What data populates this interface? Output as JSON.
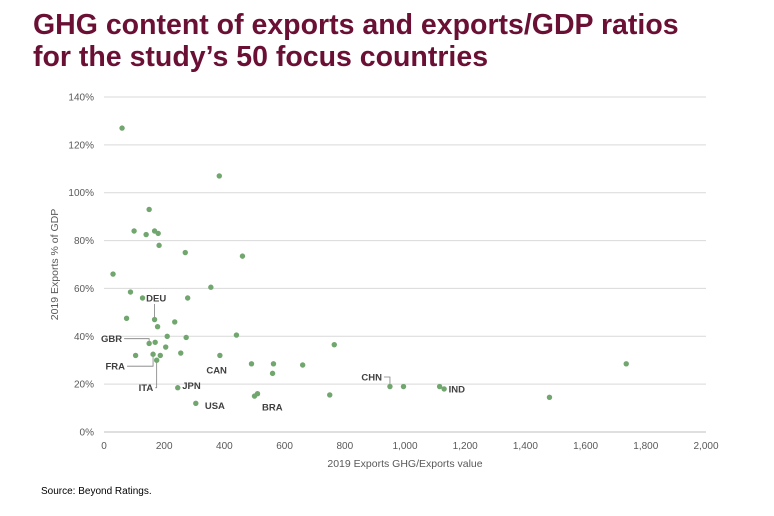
{
  "title": {
    "line1": "GHG content of exports and exports/GDP ratios",
    "line2": "for the study’s 50 focus countries"
  },
  "source": "Source: Beyond Ratings.",
  "colors": {
    "title": "#6b1035",
    "point": "#71a66e",
    "grid": "#d9d9d9",
    "leader": "#7f7f7f"
  },
  "chart_data": {
    "type": "scatter",
    "xlabel": "2019 Exports GHG/Exports value",
    "ylabel": "2019 Exports % of GDP",
    "xlim": [
      0,
      2000
    ],
    "ylim": [
      0,
      140
    ],
    "x_ticks": [
      {
        "v": 0,
        "t": "0"
      },
      {
        "v": 200,
        "t": "200"
      },
      {
        "v": 400,
        "t": "400"
      },
      {
        "v": 600,
        "t": "600"
      },
      {
        "v": 800,
        "t": "800"
      },
      {
        "v": 1000,
        "t": "1,000"
      },
      {
        "v": 1200,
        "t": "1,200"
      },
      {
        "v": 1400,
        "t": "1,400"
      },
      {
        "v": 1600,
        "t": "1,600"
      },
      {
        "v": 1800,
        "t": "1,800"
      },
      {
        "v": 2000,
        "t": "2,000"
      }
    ],
    "y_ticks": [
      {
        "v": 0,
        "t": "0%"
      },
      {
        "v": 20,
        "t": "20%"
      },
      {
        "v": 40,
        "t": "40%"
      },
      {
        "v": 60,
        "t": "60%"
      },
      {
        "v": 80,
        "t": "80%"
      },
      {
        "v": 100,
        "t": "100%"
      },
      {
        "v": 120,
        "t": "120%"
      },
      {
        "v": 140,
        "t": "140%"
      }
    ],
    "grid": true,
    "points": [
      {
        "x": 60,
        "y": 127
      },
      {
        "x": 30,
        "y": 66
      },
      {
        "x": 75,
        "y": 47.5
      },
      {
        "x": 88,
        "y": 58.5
      },
      {
        "x": 100,
        "y": 84
      },
      {
        "x": 105,
        "y": 32
      },
      {
        "x": 128,
        "y": 56
      },
      {
        "x": 140,
        "y": 82.5
      },
      {
        "x": 150,
        "y": 93
      },
      {
        "x": 150,
        "y": 37
      },
      {
        "x": 163,
        "y": 32.5
      },
      {
        "x": 168,
        "y": 84
      },
      {
        "x": 168,
        "y": 47
      },
      {
        "x": 170,
        "y": 37.5
      },
      {
        "x": 175,
        "y": 30
      },
      {
        "x": 178,
        "y": 44
      },
      {
        "x": 180,
        "y": 83
      },
      {
        "x": 183,
        "y": 78
      },
      {
        "x": 187,
        "y": 32
      },
      {
        "x": 205,
        "y": 35.5
      },
      {
        "x": 210,
        "y": 40
      },
      {
        "x": 235,
        "y": 46
      },
      {
        "x": 245,
        "y": 18.5
      },
      {
        "x": 255,
        "y": 33
      },
      {
        "x": 270,
        "y": 75
      },
      {
        "x": 273,
        "y": 39.5
      },
      {
        "x": 278,
        "y": 56
      },
      {
        "x": 305,
        "y": 12
      },
      {
        "x": 355,
        "y": 60.5
      },
      {
        "x": 383,
        "y": 107
      },
      {
        "x": 385,
        "y": 32
      },
      {
        "x": 440,
        "y": 40.5
      },
      {
        "x": 460,
        "y": 73.5
      },
      {
        "x": 490,
        "y": 28.5
      },
      {
        "x": 500,
        "y": 15
      },
      {
        "x": 510,
        "y": 16
      },
      {
        "x": 560,
        "y": 24.5
      },
      {
        "x": 563,
        "y": 28.5
      },
      {
        "x": 660,
        "y": 28
      },
      {
        "x": 750,
        "y": 15.5
      },
      {
        "x": 765,
        "y": 36.5
      },
      {
        "x": 950,
        "y": 19
      },
      {
        "x": 995,
        "y": 19
      },
      {
        "x": 1115,
        "y": 19
      },
      {
        "x": 1130,
        "y": 18
      },
      {
        "x": 1480,
        "y": 14.5
      },
      {
        "x": 1735,
        "y": 28.5
      }
    ],
    "labels": [
      {
        "text": "DEU",
        "x": 140,
        "y": 56,
        "leader_to": {
          "x": 168,
          "y": 47
        }
      },
      {
        "text": "GBR",
        "x": -10,
        "y": 39,
        "leader_to": {
          "x": 150,
          "y": 37
        }
      },
      {
        "text": "FRA",
        "x": 5,
        "y": 27.5,
        "leader_to": {
          "x": 163,
          "y": 32.5
        }
      },
      {
        "text": "ITA",
        "x": 115,
        "y": 18.5,
        "leader_to": {
          "x": 175,
          "y": 30
        }
      },
      {
        "text": "JPN",
        "x": 260,
        "y": 19.5
      },
      {
        "text": "USA",
        "x": 335,
        "y": 11
      },
      {
        "text": "CAN",
        "x": 340,
        "y": 26
      },
      {
        "text": "BRA",
        "x": 525,
        "y": 10.5
      },
      {
        "text": "CHN",
        "x": 855,
        "y": 23,
        "leader_to": {
          "x": 950,
          "y": 19
        }
      },
      {
        "text": "IND",
        "x": 1145,
        "y": 18
      }
    ]
  }
}
